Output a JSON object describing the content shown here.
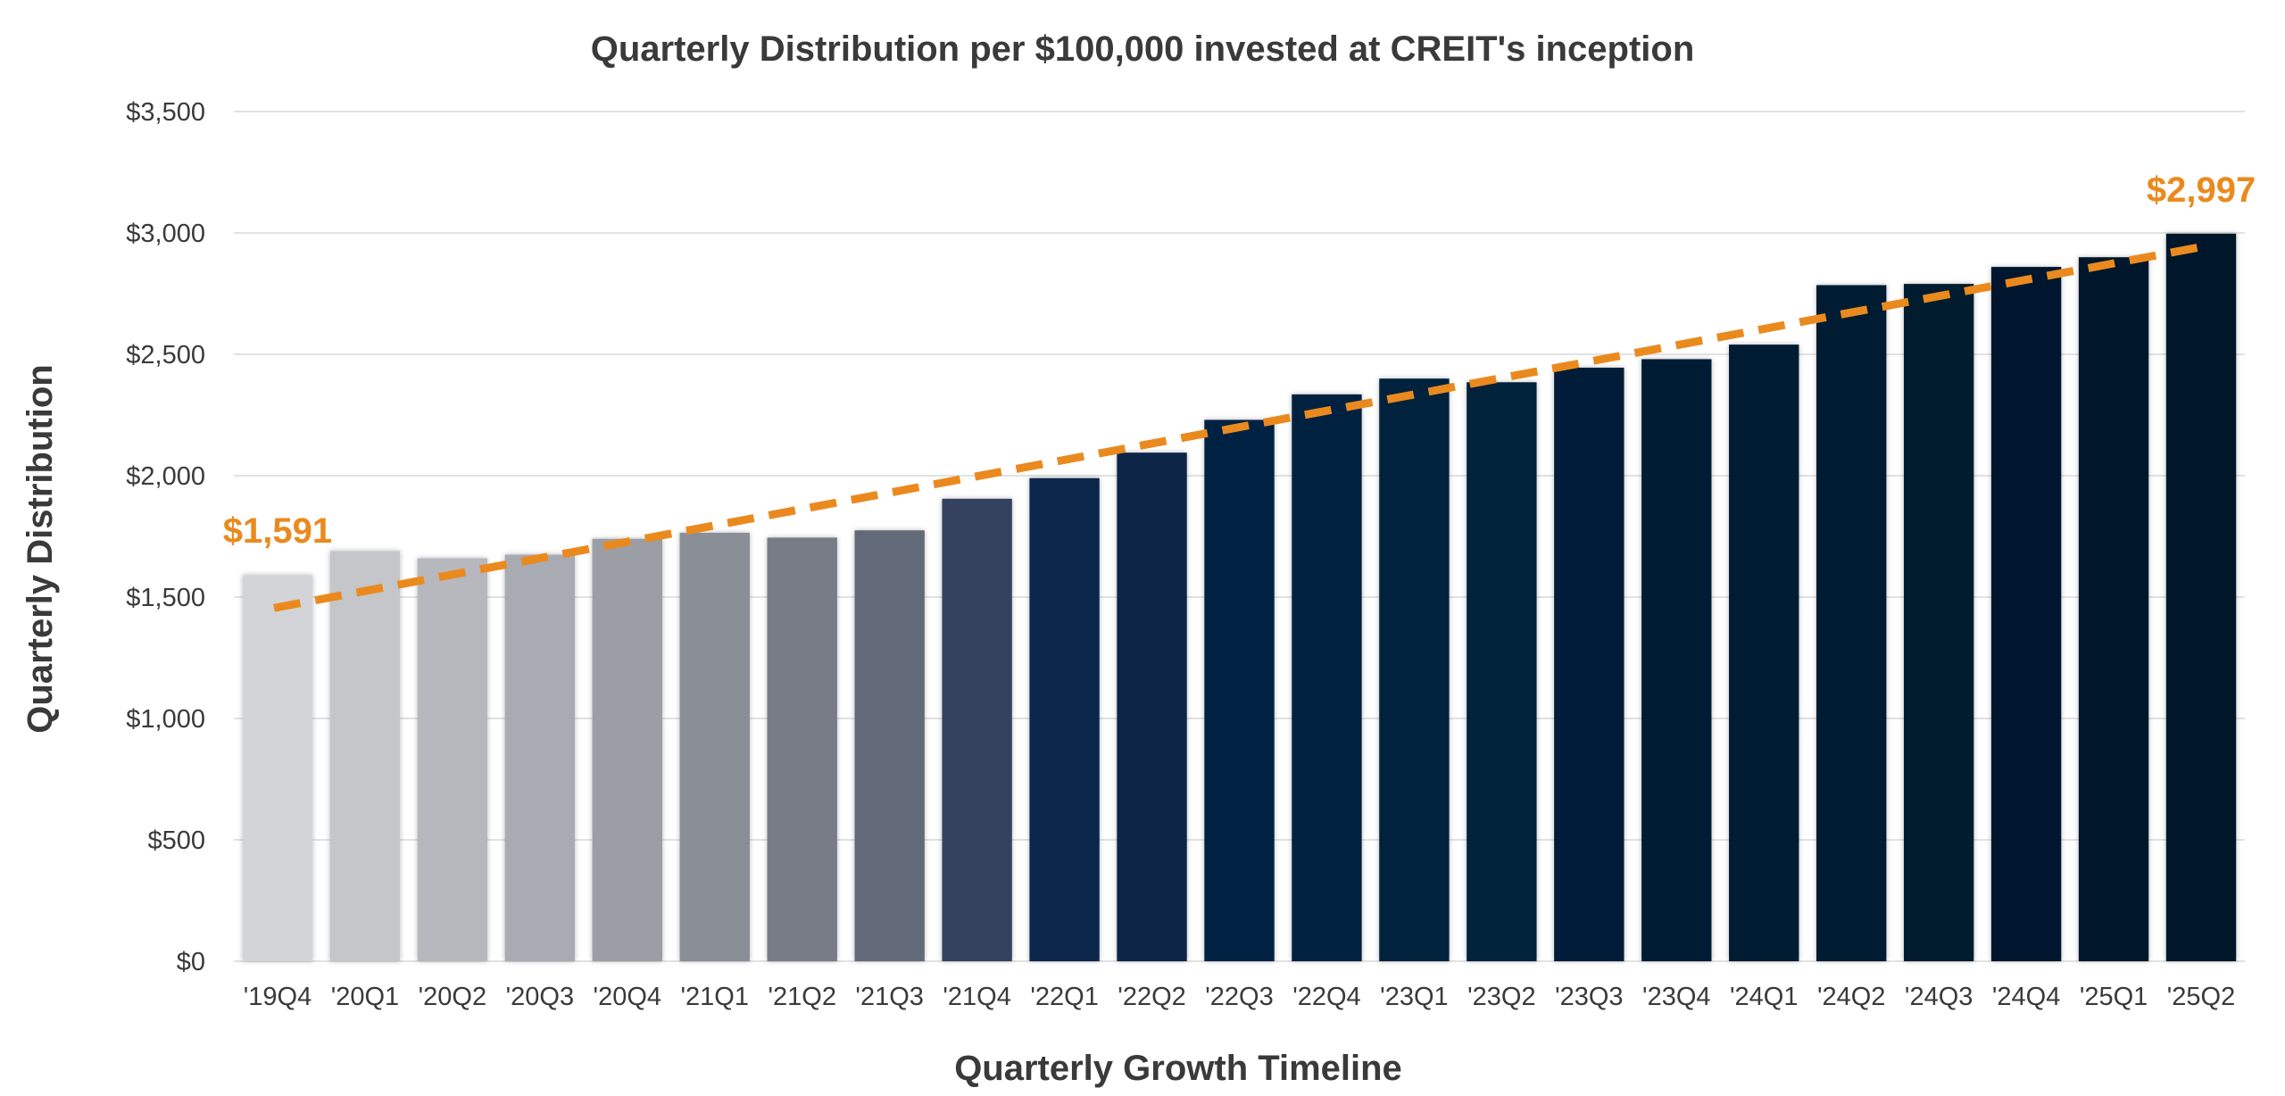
{
  "chart_data": {
    "type": "bar",
    "title": "Quarterly Distribution per $100,000 invested at CREIT's inception",
    "xlabel": "Quarterly Growth Timeline",
    "ylabel": "Quarterly Distribution",
    "ylim": [
      0,
      3500
    ],
    "yticks": [
      0,
      500,
      1000,
      1500,
      2000,
      2500,
      3000,
      3500
    ],
    "ytick_labels": [
      "$0",
      "$500",
      "$1,000",
      "$1,500",
      "$2,000",
      "$2,500",
      "$3,000",
      "$3,500"
    ],
    "grid": true,
    "categories": [
      "'19Q4",
      "'20Q1",
      "'20Q2",
      "'20Q3",
      "'20Q4",
      "'21Q1",
      "'21Q2",
      "'21Q3",
      "'21Q4",
      "'22Q1",
      "'22Q2",
      "'22Q3",
      "'22Q4",
      "'23Q1",
      "'23Q2",
      "'23Q3",
      "'23Q4",
      "'24Q1",
      "'24Q2",
      "'24Q3",
      "'24Q4",
      "'25Q1",
      "'25Q2"
    ],
    "values": [
      1591,
      1690,
      1660,
      1675,
      1740,
      1765,
      1745,
      1775,
      1905,
      1990,
      2095,
      2230,
      2335,
      2400,
      2385,
      2445,
      2480,
      2540,
      2785,
      2790,
      2860,
      2900,
      2997
    ],
    "bar_colors": [
      "#d2d4d7",
      "#c4c6ca",
      "#b6b8bd",
      "#a8abb1",
      "#9b9ea5",
      "#8a8e96",
      "#777c87",
      "#626a7a",
      "#36435e",
      "#08284c",
      "#072647",
      "#062443",
      "#062240",
      "#06213d",
      "#06203b",
      "#061f38",
      "#051e36",
      "#051c33",
      "#051b31",
      "#051a2f",
      "#05192e",
      "#05182c",
      "#04172a"
    ],
    "trendline": {
      "color": "#ea8a1e",
      "style": "dashed",
      "start_value": 1455,
      "end_value": 2945
    },
    "annotations": [
      {
        "label": "$1,591",
        "category": "'19Q4",
        "value": 1591
      },
      {
        "label": "$2,997",
        "category": "'25Q2",
        "value": 2997
      }
    ]
  }
}
